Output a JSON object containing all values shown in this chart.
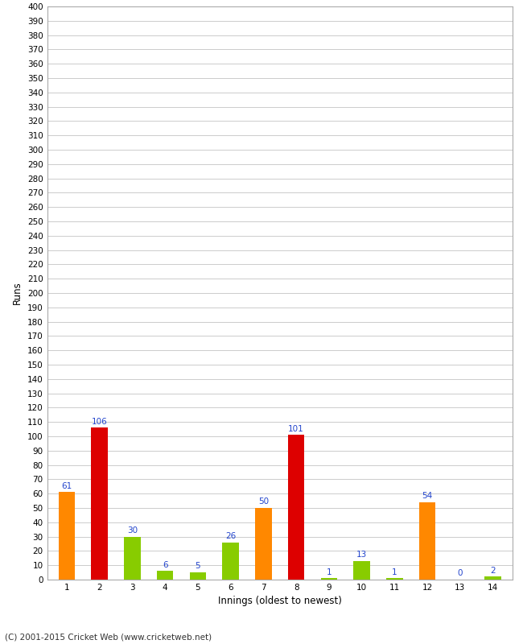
{
  "innings": [
    1,
    2,
    3,
    4,
    5,
    6,
    7,
    8,
    9,
    10,
    11,
    12,
    13,
    14
  ],
  "values": [
    61,
    106,
    30,
    6,
    5,
    26,
    50,
    101,
    1,
    13,
    1,
    54,
    0,
    2
  ],
  "colors": [
    "#ff8800",
    "#dd0000",
    "#88cc00",
    "#88cc00",
    "#88cc00",
    "#88cc00",
    "#ff8800",
    "#dd0000",
    "#88cc00",
    "#88cc00",
    "#88cc00",
    "#ff8800",
    "#ff8800",
    "#88cc00"
  ],
  "xlabel": "Innings (oldest to newest)",
  "ylabel": "Runs",
  "ylim": [
    0,
    400
  ],
  "yticks": [
    0,
    10,
    20,
    30,
    40,
    50,
    60,
    70,
    80,
    90,
    100,
    110,
    120,
    130,
    140,
    150,
    160,
    170,
    180,
    190,
    200,
    210,
    220,
    230,
    240,
    250,
    260,
    270,
    280,
    290,
    300,
    310,
    320,
    330,
    340,
    350,
    360,
    370,
    380,
    390,
    400
  ],
  "bg_color": "#ffffff",
  "grid_color": "#cccccc",
  "label_color": "#2244cc",
  "footer": "(C) 2001-2015 Cricket Web (www.cricketweb.net)",
  "bar_width": 0.5
}
